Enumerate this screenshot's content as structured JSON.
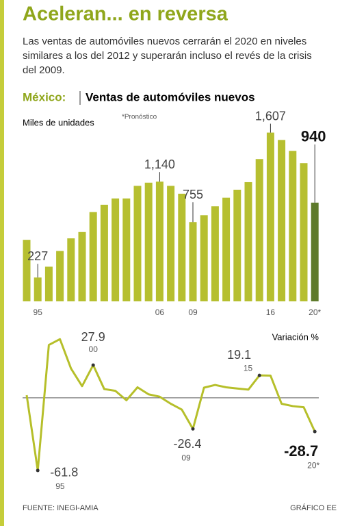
{
  "title": "Aceleran... en reversa",
  "subtitle": "Las ventas de automóviles nuevos cerrarán el 2020 en niveles similares a los del 2012 y superarán incluso el revés de la crisis del 2009.",
  "source": "FUENTE: INEGI-AMIA",
  "credit": "GRÁFICO EE",
  "chart_data": [
    {
      "type": "bar",
      "region": "México:",
      "title": "Ventas de automóviles nuevos",
      "y_label": "Miles de unidades",
      "note": "*Pronóstico",
      "categories": [
        null,
        "95",
        null,
        null,
        null,
        null,
        null,
        null,
        null,
        null,
        null,
        null,
        "06",
        null,
        null,
        "09",
        null,
        null,
        null,
        null,
        null,
        null,
        "16",
        null,
        null,
        null,
        "20*"
      ],
      "values": [
        586,
        227,
        330,
        480,
        600,
        660,
        850,
        920,
        980,
        980,
        1100,
        1130,
        1140,
        1100,
        1025,
        755,
        820,
        905,
        987,
        1063,
        1135,
        1355,
        1607,
        1537,
        1433,
        1316,
        940
      ],
      "value_labels": [
        null,
        "227",
        null,
        null,
        null,
        null,
        null,
        null,
        null,
        null,
        null,
        null,
        "1,140",
        null,
        null,
        "755",
        null,
        null,
        null,
        null,
        null,
        null,
        "1,607",
        null,
        null,
        null,
        "940"
      ],
      "color": "#b6bf30",
      "highlight_color": "#5e7a2b",
      "ylim": [
        0,
        1650
      ]
    },
    {
      "type": "line",
      "y_label": "Variación %",
      "values": [
        2.3,
        -61.8,
        45,
        50,
        25,
        10,
        27.9,
        7.5,
        6,
        -2,
        9,
        3,
        1,
        -5,
        -10,
        -26.4,
        8.7,
        11,
        9,
        8,
        7,
        19.1,
        19,
        -5,
        -7,
        -8,
        -28.7
      ],
      "value_labels": [
        null,
        "-61.8",
        null,
        null,
        null,
        null,
        "27.9",
        null,
        null,
        null,
        null,
        null,
        null,
        null,
        null,
        "-26.4",
        null,
        null,
        null,
        null,
        null,
        "19.1",
        null,
        null,
        null,
        null,
        "-28.7"
      ],
      "point_labels": [
        null,
        "95",
        null,
        null,
        null,
        null,
        "00",
        null,
        null,
        null,
        null,
        null,
        null,
        null,
        null,
        "09",
        null,
        null,
        null,
        null,
        null,
        "15",
        null,
        null,
        null,
        null,
        "20*"
      ],
      "color": "#b6bf2a",
      "ylim": [
        -70,
        60
      ]
    }
  ]
}
